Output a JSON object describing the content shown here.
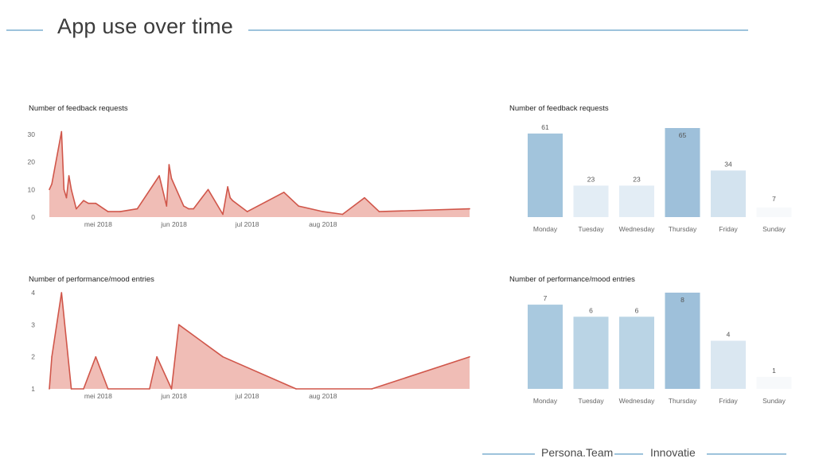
{
  "page": {
    "title": "App use over time",
    "accent": "#9dc3dc",
    "footer": {
      "brand": "Persona.Team",
      "section": "Innovatie"
    }
  },
  "chart_data": [
    {
      "type": "area",
      "title": "Number of feedback requests",
      "color_line": "#d0564a",
      "color_fill": "#f0bdb6",
      "x_domain": [
        "2018-04-11",
        "2018-09-30"
      ],
      "ylim": [
        0,
        30
      ],
      "yticks": [
        0,
        10,
        20,
        30
      ],
      "xticks": [
        {
          "date": "2018-05-01",
          "label": "mei 2018"
        },
        {
          "date": "2018-06-01",
          "label": "jun 2018"
        },
        {
          "date": "2018-07-01",
          "label": "jul 2018"
        },
        {
          "date": "2018-08-01",
          "label": "aug 2018"
        }
      ],
      "x": [
        "2018-04-11",
        "2018-04-12",
        "2018-04-16",
        "2018-04-17",
        "2018-04-18",
        "2018-04-19",
        "2018-04-20",
        "2018-04-22",
        "2018-04-25",
        "2018-04-27",
        "2018-04-30",
        "2018-05-05",
        "2018-05-10",
        "2018-05-17",
        "2018-05-26",
        "2018-05-29",
        "2018-05-30",
        "2018-05-31",
        "2018-06-05",
        "2018-06-07",
        "2018-06-09",
        "2018-06-15",
        "2018-06-21",
        "2018-06-23",
        "2018-06-24",
        "2018-06-25",
        "2018-07-01",
        "2018-07-16",
        "2018-07-22",
        "2018-08-01",
        "2018-08-09",
        "2018-08-18",
        "2018-08-24",
        "2018-09-30"
      ],
      "y": [
        10,
        12,
        31,
        10,
        7,
        15,
        10,
        3,
        6,
        5,
        5,
        2,
        2,
        3,
        15,
        4,
        19,
        14,
        4,
        3,
        3,
        10,
        1,
        11,
        7,
        6,
        2,
        9,
        4,
        2,
        1,
        7,
        2,
        3
      ]
    },
    {
      "type": "bar",
      "title": "Number of feedback requests",
      "categories": [
        "Monday",
        "Tuesday",
        "Wednesday",
        "Thursday",
        "Friday",
        "Sunday"
      ],
      "values": [
        61,
        23,
        23,
        65,
        34,
        7
      ],
      "colors": [
        "#a2c4dc",
        "#e3edf5",
        "#e3edf5",
        "#9ec0da",
        "#d3e3ef",
        "#f7f9fb"
      ],
      "ylim": [
        0,
        65
      ]
    },
    {
      "type": "area",
      "title": "Number of performance/mood entries",
      "color_line": "#d0564a",
      "color_fill": "#f0bdb6",
      "x_domain": [
        "2018-04-11",
        "2018-09-30"
      ],
      "ylim": [
        1,
        4
      ],
      "yticks": [
        1,
        2,
        3,
        4
      ],
      "xticks": [
        {
          "date": "2018-05-01",
          "label": "mei 2018"
        },
        {
          "date": "2018-06-01",
          "label": "jun 2018"
        },
        {
          "date": "2018-07-01",
          "label": "jul 2018"
        },
        {
          "date": "2018-08-01",
          "label": "aug 2018"
        }
      ],
      "x": [
        "2018-04-11",
        "2018-04-12",
        "2018-04-16",
        "2018-04-20",
        "2018-04-25",
        "2018-04-30",
        "2018-05-05",
        "2018-05-22",
        "2018-05-25",
        "2018-05-31",
        "2018-06-03",
        "2018-06-21",
        "2018-07-21",
        "2018-08-21",
        "2018-09-30"
      ],
      "y": [
        1,
        2,
        4,
        1,
        1,
        2,
        1,
        1,
        2,
        1,
        3,
        2,
        1,
        1,
        2
      ]
    },
    {
      "type": "bar",
      "title": "Number of performance/mood entries",
      "categories": [
        "Monday",
        "Tuesday",
        "Wednesday",
        "Thursday",
        "Friday",
        "Sunday"
      ],
      "values": [
        7,
        6,
        6,
        8,
        4,
        1
      ],
      "colors": [
        "#a9c9df",
        "#bad4e5",
        "#bad4e5",
        "#9ec0da",
        "#dae7f1",
        "#f7f9fb"
      ],
      "ylim": [
        0,
        8
      ]
    }
  ]
}
